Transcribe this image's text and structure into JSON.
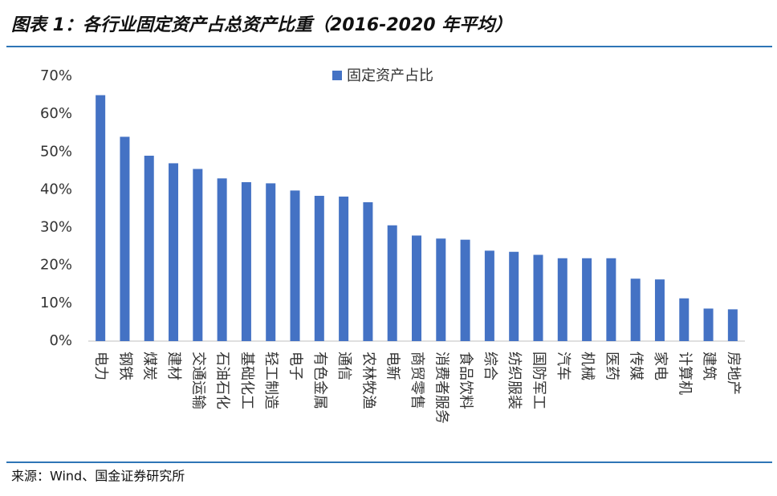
{
  "chart_data": {
    "type": "bar",
    "title": "图表 1：各行业固定资产占总资产比重（2016-2020 年平均）",
    "source": "来源：Wind、国金证券研究所",
    "categories": [
      "电力",
      "钢铁",
      "煤炭",
      "建材",
      "交通运输",
      "石油石化",
      "基础化工",
      "轻工制造",
      "电子",
      "有色金属",
      "通信",
      "农林牧渔",
      "电新",
      "商贸零售",
      "消费者服务",
      "食品饮料",
      "综合",
      "纺织服装",
      "国防军工",
      "汽车",
      "机械",
      "医药",
      "传媒",
      "家电",
      "计算机",
      "建筑",
      "房地产"
    ],
    "series": [
      {
        "name": "固定资产占比",
        "color": "#4472c4",
        "values": [
          65,
          54,
          49,
          47,
          45.5,
          43,
          42,
          41.7,
          39.8,
          38.4,
          38.2,
          36.7,
          30.6,
          27.9,
          27.1,
          26.8,
          23.9,
          23.6,
          22.8,
          21.9,
          21.9,
          21.9,
          16.5,
          16.3,
          11.3,
          8.6,
          8.4
        ]
      }
    ],
    "ylim": [
      0,
      70
    ],
    "yticks": [
      {
        "value": 0,
        "label": "0%"
      },
      {
        "value": 10,
        "label": "10%"
      },
      {
        "value": 20,
        "label": "20%"
      },
      {
        "value": 30,
        "label": "30%"
      },
      {
        "value": 40,
        "label": "40%"
      },
      {
        "value": 50,
        "label": "50%"
      },
      {
        "value": 60,
        "label": "60%"
      },
      {
        "value": 70,
        "label": "70%"
      }
    ],
    "grid": false,
    "legend": "top"
  }
}
